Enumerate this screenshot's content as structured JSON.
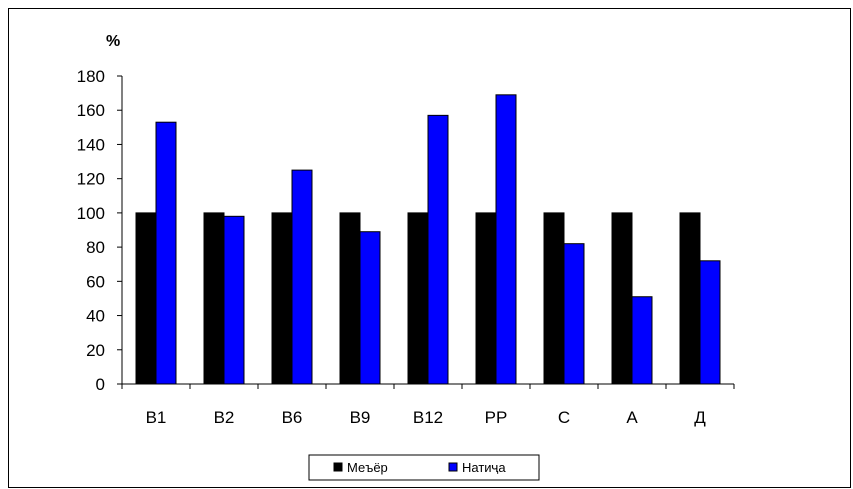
{
  "chart_data": {
    "type": "bar",
    "y_unit": "%",
    "categories": [
      "B1",
      "B2",
      "B6",
      "B9",
      "B12",
      "PP",
      "C",
      "A",
      "Д"
    ],
    "series": [
      {
        "name": "Меъёр",
        "color": "#000000",
        "values": [
          100,
          100,
          100,
          100,
          100,
          100,
          100,
          100,
          100
        ]
      },
      {
        "name": "Натиҷа",
        "color": "#0000ff",
        "values": [
          153,
          98,
          125,
          89,
          157,
          169,
          82,
          51,
          72
        ]
      }
    ],
    "ylim": [
      0,
      180
    ],
    "yticks": [
      0,
      20,
      40,
      60,
      80,
      100,
      120,
      140,
      160,
      180
    ],
    "grid": false,
    "legend_position": "bottom"
  }
}
